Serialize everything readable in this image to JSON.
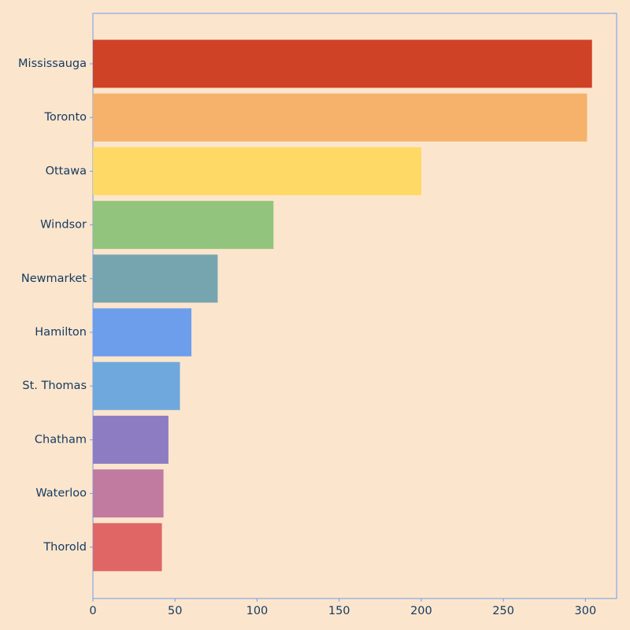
{
  "chart_data": {
    "type": "bar",
    "orientation": "horizontal",
    "title": "",
    "xlabel": "",
    "ylabel": "",
    "categories": [
      "Mississauga",
      "Toronto",
      "Ottawa",
      "Windsor",
      "Newmarket",
      "Hamilton",
      "St. Thomas",
      "Chatham",
      "Waterloo",
      "Thorold"
    ],
    "values": [
      304,
      301,
      200,
      110,
      76,
      60,
      53,
      46,
      43,
      42
    ],
    "colors": [
      "#cf4226",
      "#f6b26b",
      "#ffd966",
      "#93c47d",
      "#76a5af",
      "#6d9eeb",
      "#6fa8dc",
      "#8e7cc3",
      "#c27ba0",
      "#e06666"
    ],
    "xlim": [
      0,
      319
    ],
    "xticks": [
      0,
      50,
      100,
      150,
      200,
      250,
      300
    ],
    "grid": false,
    "legend": "none"
  },
  "style": {
    "background": "#fce5cd",
    "axis_color": "#6d9eeb",
    "text_color": "#123a5f"
  }
}
